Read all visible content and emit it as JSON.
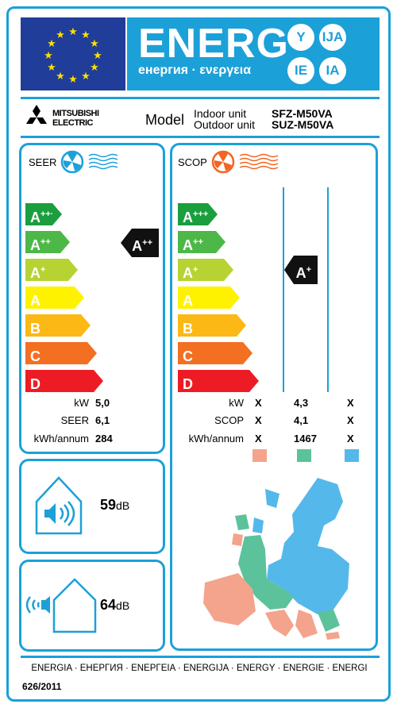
{
  "header": {
    "title": "ENERG",
    "subtitle": "енергия · ενεργεια",
    "lang_codes": [
      "Y",
      "IJA",
      "IE",
      "IA"
    ],
    "eu_blue": "#1f3d99",
    "accent": "#1ca0d8"
  },
  "supplier": {
    "brand": "MITSUBISHI ELECTRIC",
    "model_label": "Model",
    "indoor_label": "Indoor unit",
    "outdoor_label": "Outdoor unit",
    "indoor_model": "SFZ-M50VA",
    "outdoor_model": "SUZ-M50VA"
  },
  "seer": {
    "title": "SEER",
    "classes": [
      {
        "base": "A",
        "sup": "+++",
        "color": "#1b9e3e"
      },
      {
        "base": "A",
        "sup": "++",
        "color": "#4db848"
      },
      {
        "base": "A",
        "sup": "+",
        "color": "#b7d333"
      },
      {
        "base": "A",
        "sup": "",
        "color": "#fff200"
      },
      {
        "base": "B",
        "sup": "",
        "color": "#fcb814"
      },
      {
        "base": "C",
        "sup": "",
        "color": "#f36f21"
      },
      {
        "base": "D",
        "sup": "",
        "color": "#ed1c24"
      }
    ],
    "rating": {
      "base": "A",
      "sup": "++"
    },
    "rows": [
      {
        "label": "kW",
        "value": "5,0"
      },
      {
        "label": "SEER",
        "value": "6,1"
      },
      {
        "label": "kWh/annum",
        "value": "284"
      }
    ]
  },
  "scop": {
    "title": "SCOP",
    "rating": {
      "base": "A",
      "sup": "+"
    },
    "rows": [
      {
        "label": "kW",
        "warmer": "X",
        "average": "4,3",
        "colder": "X"
      },
      {
        "label": "SCOP",
        "warmer": "X",
        "average": "4,1",
        "colder": "X"
      },
      {
        "label": "kWh/annum",
        "warmer": "X",
        "average": "1467",
        "colder": "X"
      }
    ],
    "zone_colors": [
      "#f4a48c",
      "#5cc29b",
      "#55b8ea"
    ]
  },
  "noise": {
    "indoor_value": "59",
    "outdoor_value": "64",
    "unit": "dB"
  },
  "footer": {
    "languages": "ENERGIA · ЕНЕРГИЯ · ΕΝΕΡΓΕΙΑ · ENERGIJA · ENERGY · ENERGIE · ENERGI",
    "regulation": "626/2011"
  }
}
